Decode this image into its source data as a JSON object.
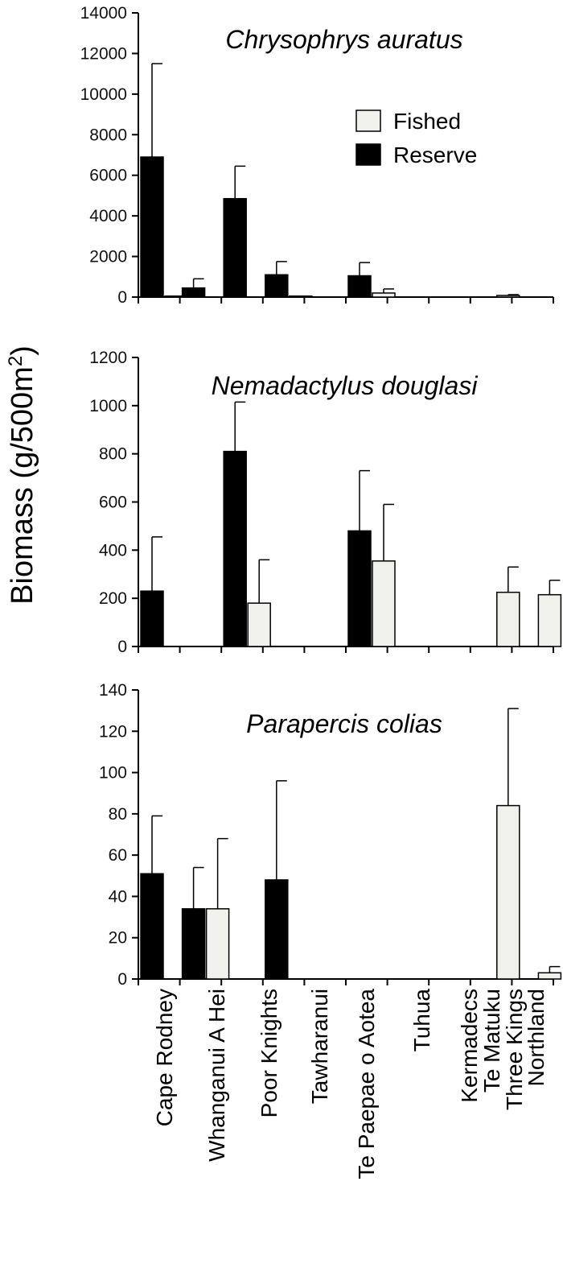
{
  "figure": {
    "ylabel": "Biomass (g/500m",
    "ylabel_sup": "2",
    "ylabel_close": ")"
  },
  "colors": {
    "Fished": "#f0f0ec",
    "Reserve": "#000000",
    "axis": "#000000"
  },
  "chart_data": [
    {
      "type": "bar",
      "title": "Chrysophrys auratus",
      "categories": [
        "Cape Rodney",
        "Whanganui A Hei",
        "Poor Knights",
        "Tawharanui",
        "Te Paepae o Aotea",
        "Tuhua",
        "Kermadecs",
        "Te Matuku",
        "Three Kings",
        "Northland"
      ],
      "ylim": [
        0,
        14000
      ],
      "yticks": [
        0,
        2000,
        4000,
        6000,
        8000,
        10000,
        12000,
        14000
      ],
      "legend": [
        "Fished",
        "Reserve"
      ],
      "legend_position": "top-right",
      "series": [
        {
          "name": "Reserve",
          "values": [
            6900,
            450,
            4850,
            1100,
            0,
            1050,
            0,
            0,
            0,
            0
          ],
          "errors": [
            4600,
            450,
            1600,
            650,
            0,
            650,
            0,
            0,
            0,
            0
          ]
        },
        {
          "name": "Fished",
          "values": [
            50,
            0,
            0,
            50,
            0,
            200,
            0,
            0,
            80,
            0
          ],
          "errors": [
            0,
            0,
            0,
            0,
            0,
            200,
            0,
            0,
            40,
            0
          ]
        }
      ]
    },
    {
      "type": "bar",
      "title": "Nemadactylus douglasi",
      "categories": [
        "Cape Rodney",
        "Whanganui A Hei",
        "Poor Knights",
        "Tawharanui",
        "Te Paepae o Aotea",
        "Tuhua",
        "Kermadecs",
        "Te Matuku",
        "Three Kings",
        "Northland"
      ],
      "ylim": [
        0,
        1200
      ],
      "yticks": [
        0,
        200,
        400,
        600,
        800,
        1000,
        1200
      ],
      "series": [
        {
          "name": "Reserve",
          "values": [
            230,
            0,
            810,
            0,
            0,
            480,
            0,
            0,
            0,
            0
          ],
          "errors": [
            225,
            0,
            205,
            0,
            0,
            250,
            0,
            0,
            0,
            0
          ]
        },
        {
          "name": "Fished",
          "values": [
            0,
            0,
            180,
            0,
            0,
            355,
            0,
            0,
            225,
            215
          ],
          "errors": [
            0,
            0,
            180,
            0,
            0,
            235,
            0,
            0,
            105,
            60
          ]
        }
      ]
    },
    {
      "type": "bar",
      "title": "Parapercis colias",
      "categories": [
        "Cape Rodney",
        "Whanganui A Hei",
        "Poor Knights",
        "Tawharanui",
        "Te Paepae o Aotea",
        "Tuhua",
        "Kermadecs",
        "Te Matuku",
        "Three Kings",
        "Northland"
      ],
      "ylim": [
        0,
        140
      ],
      "yticks": [
        0,
        20,
        40,
        60,
        80,
        100,
        120,
        140
      ],
      "series": [
        {
          "name": "Reserve",
          "values": [
            51,
            34,
            0,
            48,
            0,
            0,
            0,
            0,
            0,
            0
          ],
          "errors": [
            28,
            20,
            0,
            48,
            0,
            0,
            0,
            0,
            0,
            0
          ]
        },
        {
          "name": "Fished",
          "values": [
            0,
            34,
            0,
            0,
            0,
            0,
            0,
            0,
            84,
            3
          ],
          "errors": [
            0,
            34,
            0,
            0,
            0,
            0,
            0,
            0,
            47,
            3
          ]
        }
      ]
    }
  ]
}
